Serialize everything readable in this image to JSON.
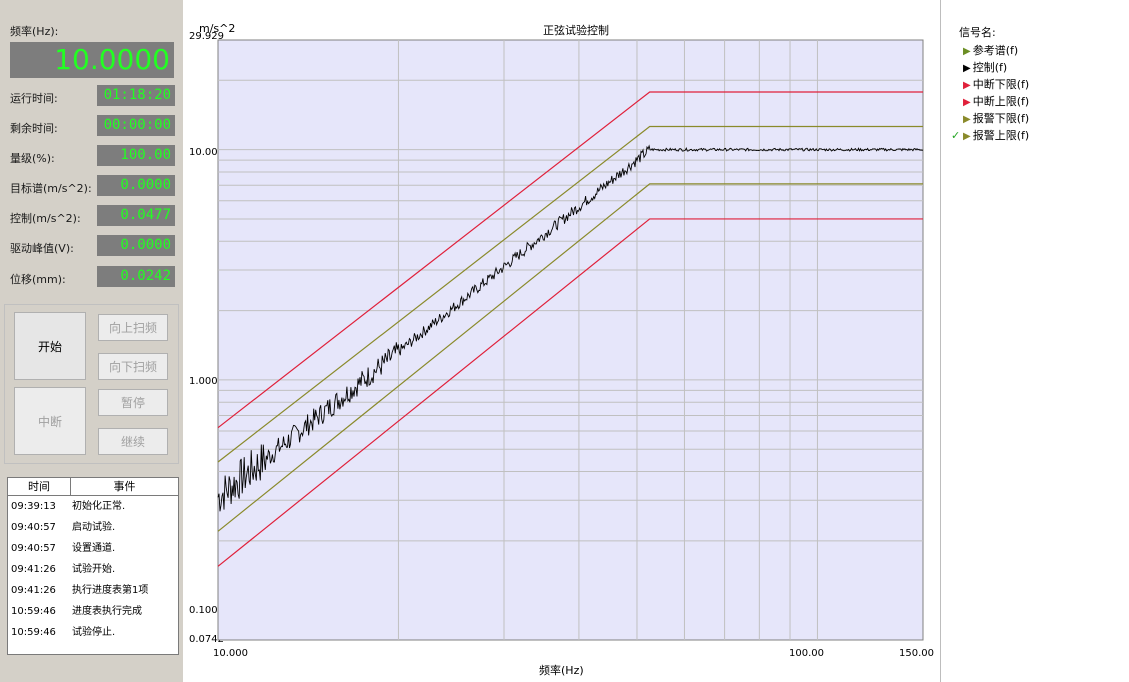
{
  "readouts": {
    "freq_label": "频率(Hz):",
    "freq_value": "10.0000",
    "rows": [
      {
        "label": "运行时间:",
        "value": "01:18:20"
      },
      {
        "label": "剩余时间:",
        "value": "00:00:00"
      },
      {
        "label": "量级(%):",
        "value": "100.00"
      },
      {
        "label": "目标谱(m/s^2):",
        "value": "0.0000"
      },
      {
        "label": "控制(m/s^2):",
        "value": "0.0477"
      },
      {
        "label": "驱动峰值(V):",
        "value": "0.0000"
      },
      {
        "label": "位移(mm):",
        "value": "0.0242"
      }
    ]
  },
  "buttons": {
    "start": "开始",
    "sweep_up": "向上扫频",
    "sweep_down": "向下扫频",
    "abort": "中断",
    "pause": "暂停",
    "resume": "继续"
  },
  "log": {
    "col_time": "时间",
    "col_event": "事件",
    "rows": [
      {
        "time": "09:39:13",
        "event": "初始化正常."
      },
      {
        "time": "09:40:57",
        "event": "启动试验."
      },
      {
        "time": "09:40:57",
        "event": "设置通道."
      },
      {
        "time": "09:41:26",
        "event": "试验开始."
      },
      {
        "time": "09:41:26",
        "event": "执行进度表第1项"
      },
      {
        "time": "10:59:46",
        "event": "进度表执行完成"
      },
      {
        "time": "10:59:46",
        "event": "试验停止."
      }
    ]
  },
  "chart": {
    "title": "正弦试验控制",
    "y_unit": "m/s^2",
    "y_ticks": [
      "29.929",
      "10.000",
      "1.0000",
      "0.1000",
      "0.0742"
    ],
    "x_ticks": [
      "10.000",
      "100.00",
      "150.00"
    ],
    "x_title": "频率(Hz)",
    "colors": {
      "abort": "#e0203a",
      "alarm": "#8a8a2a",
      "control": "#000000",
      "plot_bg": "#e6e6fa",
      "grid": "#c0c0c0"
    }
  },
  "chart_data": {
    "type": "line",
    "x_scale": "log",
    "y_scale": "log",
    "xlim": [
      10,
      150
    ],
    "ylim": [
      0.0742,
      29.929
    ],
    "xlabel": "频率(Hz)",
    "ylabel": "m/s^2",
    "title": "正弦试验控制",
    "series": [
      {
        "name": "中断上限(f)",
        "x": [
          10,
          52.5,
          150
        ],
        "y": [
          0.62,
          17.8,
          17.8
        ]
      },
      {
        "name": "报警上限(f)",
        "x": [
          10,
          52.5,
          150
        ],
        "y": [
          0.44,
          12.6,
          12.6
        ]
      },
      {
        "name": "控制(f)",
        "x": [
          10,
          52.5,
          150
        ],
        "y": [
          0.31,
          10.0,
          10.0
        ]
      },
      {
        "name": "报警下限(f)",
        "x": [
          10,
          52.5,
          150
        ],
        "y": [
          0.22,
          7.1,
          7.1
        ]
      },
      {
        "name": "中断下限(f)",
        "x": [
          10,
          52.5,
          150
        ],
        "y": [
          0.155,
          5.0,
          5.0
        ]
      }
    ]
  },
  "legend": {
    "title": "信号名:",
    "items": [
      {
        "label": "参考谱(f)",
        "color": "#6b8e23",
        "checked": false
      },
      {
        "label": "控制(f)",
        "color": "#000000",
        "checked": false
      },
      {
        "label": "中断下限(f)",
        "color": "#e0203a",
        "checked": false
      },
      {
        "label": "中断上限(f)",
        "color": "#e0203a",
        "checked": false
      },
      {
        "label": "报警下限(f)",
        "color": "#8a8a2a",
        "checked": false
      },
      {
        "label": "报警上限(f)",
        "color": "#8a8a2a",
        "checked": true
      }
    ]
  }
}
